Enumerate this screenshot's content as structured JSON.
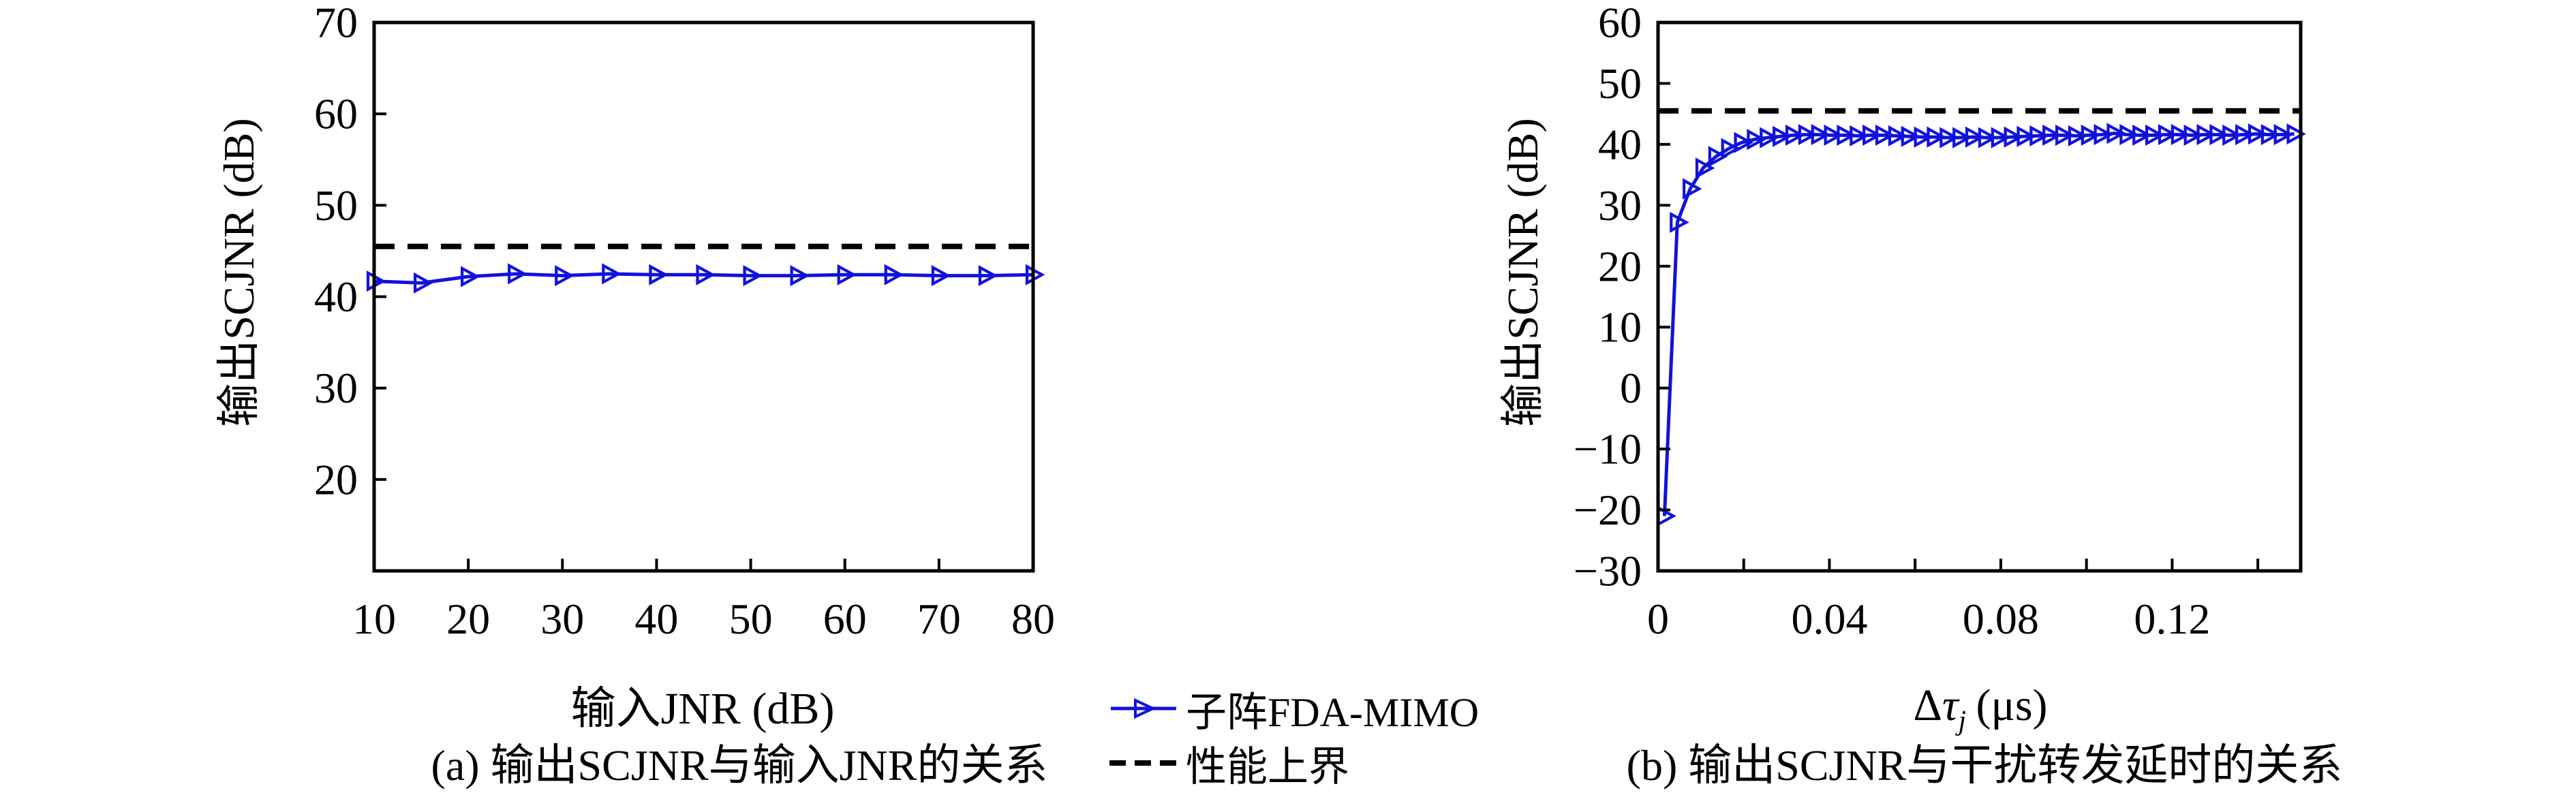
{
  "colors": {
    "series": "#1111dd",
    "bound": "#000000",
    "axis": "#000000",
    "background": "#ffffff"
  },
  "legend": {
    "items": [
      {
        "label": "子阵FDA-MIMO",
        "marker": "triangle-right-line",
        "color": "#1111dd"
      },
      {
        "label": "性能上界",
        "marker": "dashed-line",
        "color": "#000000"
      }
    ]
  },
  "captions": {
    "a": "(a) 输出SCJNR与输入JNR的关系",
    "b": "(b) 输出SCJNR与干扰转发延时的关系"
  },
  "chart_data": [
    {
      "type": "line",
      "panel": "a",
      "xlabel": "输入JNR (dB)",
      "ylabel": "输出SCJNR (dB)",
      "xlim": [
        10,
        80
      ],
      "ylim": [
        10,
        70
      ],
      "grid": false,
      "xtick_marks": [
        20,
        30,
        40,
        50,
        60,
        70,
        80
      ],
      "xtick_labels": [
        {
          "v": 10,
          "t": "10"
        },
        {
          "v": 20,
          "t": "20"
        },
        {
          "v": 30,
          "t": "30"
        },
        {
          "v": 40,
          "t": "40"
        },
        {
          "v": 50,
          "t": "50"
        },
        {
          "v": 60,
          "t": "60"
        },
        {
          "v": 70,
          "t": "70"
        },
        {
          "v": 80,
          "t": "80"
        }
      ],
      "ytick_marks": [
        20,
        30,
        40,
        50,
        60
      ],
      "ytick_labels": [
        {
          "v": 70,
          "t": "70"
        },
        {
          "v": 60,
          "t": "60"
        },
        {
          "v": 50,
          "t": "50"
        },
        {
          "v": 40,
          "t": "40"
        },
        {
          "v": 30,
          "t": "30"
        },
        {
          "v": 20,
          "t": "20"
        }
      ],
      "series": [
        {
          "name": "子阵FDA-MIMO",
          "style": "solid-triangle",
          "x": [
            10,
            15,
            20,
            25,
            30,
            35,
            40,
            45,
            50,
            55,
            60,
            65,
            70,
            75,
            80
          ],
          "y": [
            41.7,
            41.5,
            42.2,
            42.5,
            42.3,
            42.5,
            42.4,
            42.4,
            42.3,
            42.3,
            42.4,
            42.4,
            42.3,
            42.3,
            42.4
          ]
        },
        {
          "name": "性能上界",
          "style": "dashed-hline",
          "y": 45.5
        }
      ]
    },
    {
      "type": "line",
      "panel": "b",
      "xlabel_delta": "Δ",
      "xlabel_tau": "τ",
      "xlabel_sub": "j",
      "xlabel_unit": "(μs)",
      "ylabel": "输出SCJNR (dB)",
      "xlim": [
        0,
        0.15
      ],
      "ylim": [
        -30,
        60
      ],
      "grid": false,
      "xtick_marks": [
        0.02,
        0.04,
        0.06,
        0.08,
        0.1,
        0.12,
        0.14
      ],
      "xtick_labels": [
        {
          "v": 0,
          "t": "0"
        },
        {
          "v": 0.04,
          "t": "0.04"
        },
        {
          "v": 0.08,
          "t": "0.08"
        },
        {
          "v": 0.12,
          "t": "0.12"
        }
      ],
      "ytick_marks": [
        -20,
        -10,
        0,
        10,
        20,
        30,
        40,
        50
      ],
      "ytick_labels": [
        {
          "v": 60,
          "t": "60"
        },
        {
          "v": 50,
          "t": "50"
        },
        {
          "v": 40,
          "t": "40"
        },
        {
          "v": 30,
          "t": "30"
        },
        {
          "v": 20,
          "t": "20"
        },
        {
          "v": 10,
          "t": "10"
        },
        {
          "v": 0,
          "t": "0"
        },
        {
          "v": -10,
          "t": "−10"
        },
        {
          "v": -20,
          "t": "−20"
        },
        {
          "v": -30,
          "t": "−30"
        }
      ],
      "series": [
        {
          "name": "子阵FDA-MIMO",
          "style": "solid-triangle",
          "x": [
            0.0015,
            0.0045,
            0.0075,
            0.0105,
            0.0135,
            0.0165,
            0.0195,
            0.0225,
            0.0255,
            0.0285,
            0.0315,
            0.0345,
            0.0375,
            0.0405,
            0.0435,
            0.0465,
            0.0495,
            0.0525,
            0.0555,
            0.0585,
            0.0615,
            0.0645,
            0.0675,
            0.0705,
            0.0735,
            0.0765,
            0.0795,
            0.0825,
            0.0855,
            0.0885,
            0.0915,
            0.0945,
            0.0975,
            0.1005,
            0.1035,
            0.1065,
            0.1095,
            0.1125,
            0.1155,
            0.1185,
            0.1215,
            0.1245,
            0.1275,
            0.1305,
            0.1335,
            0.1365,
            0.1395,
            0.1425,
            0.1455,
            0.1485
          ],
          "y": [
            -21,
            27.2,
            32.7,
            36.1,
            38.0,
            39.3,
            40.3,
            40.8,
            41.1,
            41.3,
            41.5,
            41.6,
            41.6,
            41.5,
            41.5,
            41.4,
            41.5,
            41.5,
            41.4,
            41.3,
            41.2,
            41.2,
            41.1,
            41.1,
            41.2,
            41.1,
            41.1,
            41.2,
            41.3,
            41.4,
            41.5,
            41.5,
            41.4,
            41.5,
            41.6,
            41.8,
            41.6,
            41.5,
            41.5,
            41.6,
            41.6,
            41.5,
            41.6,
            41.6,
            41.5,
            41.6,
            41.7,
            41.6,
            41.6,
            41.7
          ]
        },
        {
          "name": "性能上界",
          "style": "dashed-hline",
          "y": 45.5
        }
      ]
    }
  ]
}
